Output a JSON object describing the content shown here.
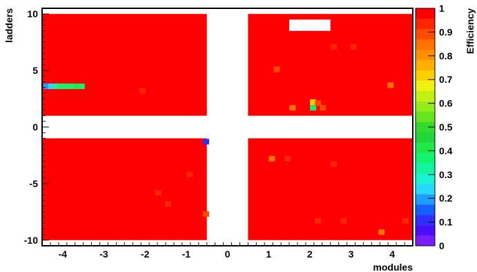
{
  "chart_data": {
    "type": "heatmap",
    "title": "",
    "xlabel": "modules",
    "ylabel": "ladders",
    "zlabel": "Efficiency",
    "xlim": [
      -4.5,
      4.5
    ],
    "ylim": [
      -10.5,
      10.5
    ],
    "zlim": [
      0,
      1
    ],
    "x_ticks": [
      -4,
      -3,
      -2,
      -1,
      0,
      1,
      2,
      3,
      4
    ],
    "y_ticks": [
      -10,
      -5,
      0,
      5,
      10
    ],
    "z_ticks": [
      0,
      0.1,
      0.2,
      0.3,
      0.4,
      0.5,
      0.6,
      0.7,
      0.8,
      0.9,
      1
    ],
    "regions": [
      {
        "name": "top-left",
        "x_range": [
          -4.5,
          -0.5
        ],
        "y_range": [
          1,
          10
        ],
        "value": 1.0
      },
      {
        "name": "top-right",
        "x_range": [
          0.5,
          4.5
        ],
        "y_range": [
          1,
          10
        ],
        "value": 1.0
      },
      {
        "name": "bottom-left",
        "x_range": [
          -4.5,
          -0.5
        ],
        "y_range": [
          -10,
          -1
        ],
        "value": 1.0
      },
      {
        "name": "bottom-right",
        "x_range": [
          0.5,
          4.5
        ],
        "y_range": [
          -10,
          -1
        ],
        "value": 1.0
      }
    ],
    "empty_cells": [
      {
        "x_range": [
          1.5,
          2.5
        ],
        "y_range": [
          8.5,
          9.5
        ]
      }
    ],
    "cells": [
      {
        "x": -4.4,
        "y": 3.6,
        "value": 0.2
      },
      {
        "x": -4.28,
        "y": 3.6,
        "value": 0.24
      },
      {
        "x": -4.15,
        "y": 3.6,
        "value": 0.34
      },
      {
        "x": -4.03,
        "y": 3.6,
        "value": 0.37
      },
      {
        "x": -3.9,
        "y": 3.6,
        "value": 0.37
      },
      {
        "x": -3.78,
        "y": 3.6,
        "value": 0.38
      },
      {
        "x": -3.66,
        "y": 3.6,
        "value": 0.4
      },
      {
        "x": -3.54,
        "y": 3.6,
        "value": 0.38
      },
      {
        "x": -2.06,
        "y": 3.2,
        "value": 0.93
      },
      {
        "x": -0.52,
        "y": -1.3,
        "value": 0.11
      },
      {
        "x": -0.92,
        "y": -4.2,
        "value": 0.94
      },
      {
        "x": -1.68,
        "y": -5.8,
        "value": 0.93
      },
      {
        "x": -1.44,
        "y": -6.8,
        "value": 0.93
      },
      {
        "x": -0.52,
        "y": -7.7,
        "value": 0.88
      },
      {
        "x": 1.2,
        "y": 5.1,
        "value": 0.88
      },
      {
        "x": 1.58,
        "y": 1.7,
        "value": 0.86
      },
      {
        "x": 2.08,
        "y": 2.2,
        "value": 0.72
      },
      {
        "x": 2.08,
        "y": 1.7,
        "value": 0.35
      },
      {
        "x": 2.2,
        "y": 2.1,
        "value": 0.9
      },
      {
        "x": 2.32,
        "y": 1.7,
        "value": 0.87
      },
      {
        "x": 2.58,
        "y": 7.1,
        "value": 0.93
      },
      {
        "x": 3.06,
        "y": 7.1,
        "value": 0.93
      },
      {
        "x": 3.96,
        "y": 3.7,
        "value": 0.83
      },
      {
        "x": 1.08,
        "y": -2.8,
        "value": 0.83
      },
      {
        "x": 1.46,
        "y": -2.8,
        "value": 0.92
      },
      {
        "x": 2.58,
        "y": -3.3,
        "value": 0.93
      },
      {
        "x": 2.2,
        "y": -8.3,
        "value": 0.93
      },
      {
        "x": 2.82,
        "y": -8.3,
        "value": 0.94
      },
      {
        "x": 3.74,
        "y": -9.3,
        "value": 0.84
      },
      {
        "x": 4.32,
        "y": -8.3,
        "value": 0.95
      }
    ],
    "colorbar": {
      "levels": [
        "#7a1ef7",
        "#4a0ef8",
        "#2e2ffb",
        "#1460ff",
        "#1f9cff",
        "#27d9ff",
        "#18f3d0",
        "#12f49d",
        "#12f46e",
        "#1ce84a",
        "#20d63a",
        "#34d92d",
        "#67e21f",
        "#93ec15",
        "#c5ef12",
        "#f0f20d",
        "#ffd000",
        "#ffaf00",
        "#ff9000",
        "#ff7300",
        "#ff4b00",
        "#ff2600",
        "#ff0000"
      ]
    },
    "grid": false,
    "legend_placement": "right"
  }
}
